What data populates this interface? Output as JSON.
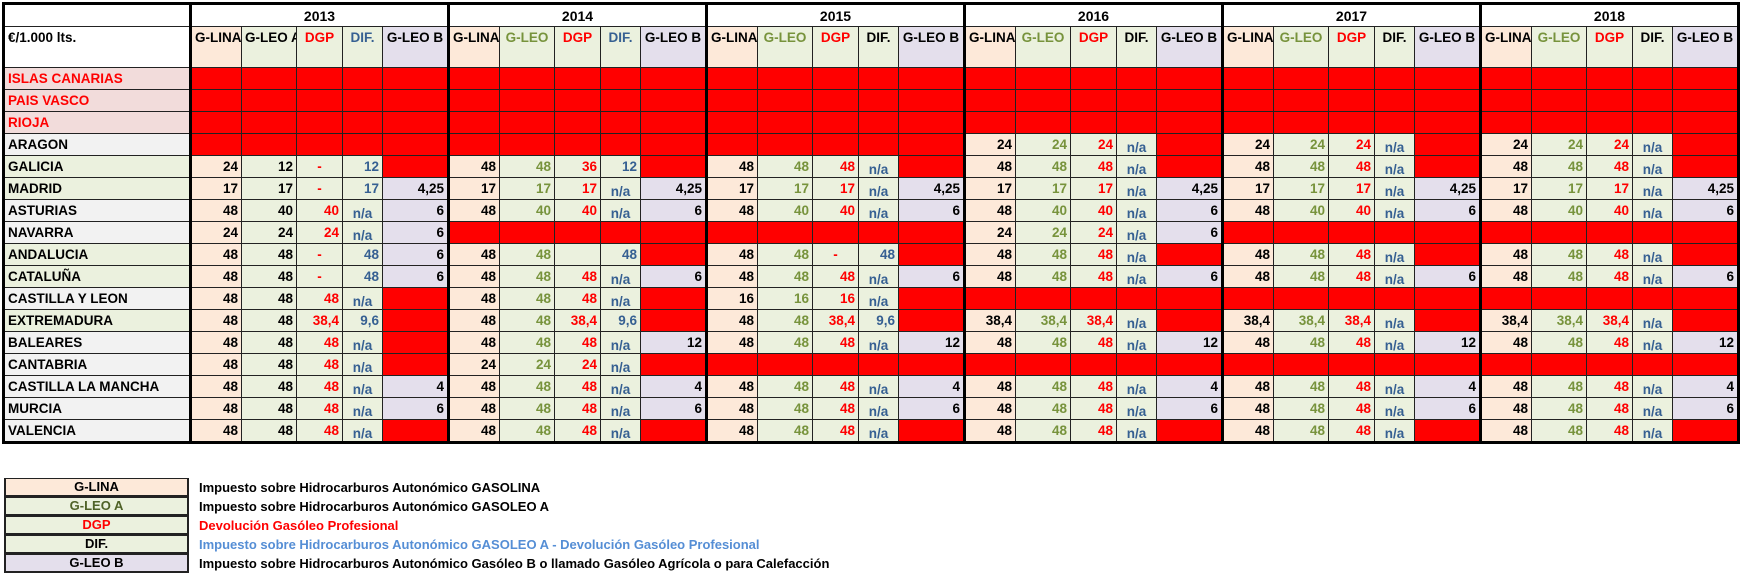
{
  "unit_label": "€/1.000 lts.",
  "colors": {
    "red_cell": "#ff0000",
    "gasolina_bg": "#fde9d9",
    "gasoleo_bg": "#ebf1de",
    "gasoleo_b_bg": "#e4dfec",
    "green_text": "#77933c",
    "blue_text": "#366092"
  },
  "years": [
    {
      "year": "2013",
      "columns": [
        "G-LINA",
        "G-LEO A",
        "DGP",
        "DIF.",
        "G-LEO B"
      ]
    },
    {
      "year": "2014",
      "columns": [
        "G-LINA",
        "G-LEO",
        "DGP",
        "DIF.",
        "G-LEO B"
      ]
    },
    {
      "year": "2015",
      "columns": [
        "G-LINA",
        "G-LEO",
        "DGP",
        "DIF.",
        "G-LEO B"
      ]
    },
    {
      "year": "2016",
      "columns": [
        "G-LINA",
        "G-LEO",
        "DGP",
        "DIF.",
        "G-LEO B"
      ]
    },
    {
      "year": "2017",
      "columns": [
        "G-LINA",
        "G-LEO",
        "DGP",
        "DIF.",
        "G-LEO B"
      ]
    },
    {
      "year": "2018",
      "columns": [
        "G-LINA",
        "G-LEO",
        "DGP",
        "DIF.",
        "G-LEO B"
      ]
    }
  ],
  "rows": [
    {
      "region": "ISLAS CANARIAS",
      "style": "excluded",
      "values": [
        null,
        null,
        null,
        null,
        null,
        null
      ]
    },
    {
      "region": "PAIS VASCO",
      "style": "excluded",
      "values": [
        null,
        null,
        null,
        null,
        null,
        null
      ]
    },
    {
      "region": "RIOJA",
      "style": "excluded",
      "values": [
        null,
        null,
        null,
        null,
        null,
        null
      ]
    },
    {
      "region": "ARAGON",
      "style": "gray",
      "values": [
        null,
        null,
        null,
        [
          "24",
          "24",
          "24",
          "n/a",
          null
        ],
        [
          "24",
          "24",
          "24",
          "n/a",
          null
        ],
        [
          "24",
          "24",
          "24",
          "n/a",
          null
        ]
      ]
    },
    {
      "region": "GALICIA",
      "style": "green",
      "values": [
        [
          "24",
          "12",
          "-",
          "12",
          null
        ],
        [
          "48",
          "48",
          "36",
          "12",
          null
        ],
        [
          "48",
          "48",
          "48",
          "n/a",
          null
        ],
        [
          "48",
          "48",
          "48",
          "n/a",
          null
        ],
        [
          "48",
          "48",
          "48",
          "n/a",
          null
        ],
        [
          "48",
          "48",
          "48",
          "n/a",
          null
        ]
      ]
    },
    {
      "region": "MADRID",
      "style": "green",
      "values": [
        [
          "17",
          "17",
          "-",
          "17",
          "4,25"
        ],
        [
          "17",
          "17",
          "17",
          "n/a",
          "4,25"
        ],
        [
          "17",
          "17",
          "17",
          "n/a",
          "4,25"
        ],
        [
          "17",
          "17",
          "17",
          "n/a",
          "4,25"
        ],
        [
          "17",
          "17",
          "17",
          "n/a",
          "4,25"
        ],
        [
          "17",
          "17",
          "17",
          "n/a",
          "4,25"
        ]
      ]
    },
    {
      "region": "ASTURIAS",
      "style": "gray",
      "values": [
        [
          "48",
          "40",
          "40",
          "n/a",
          "6"
        ],
        [
          "48",
          "40",
          "40",
          "n/a",
          "6"
        ],
        [
          "48",
          "40",
          "40",
          "n/a",
          "6"
        ],
        [
          "48",
          "40",
          "40",
          "n/a",
          "6"
        ],
        [
          "48",
          "40",
          "40",
          "n/a",
          "6"
        ],
        [
          "48",
          "40",
          "40",
          "n/a",
          "6"
        ]
      ]
    },
    {
      "region": "NAVARRA",
      "style": "gray",
      "values": [
        [
          "24",
          "24",
          "24",
          "n/a",
          "6"
        ],
        null,
        null,
        [
          "24",
          "24",
          "24",
          "n/a",
          "6"
        ],
        null,
        null
      ]
    },
    {
      "region": "ANDALUCIA",
      "style": "green",
      "values": [
        [
          "48",
          "48",
          "-",
          "48",
          "6"
        ],
        [
          "48",
          "48",
          "",
          "48",
          null
        ],
        [
          "48",
          "48",
          "-",
          "48",
          null
        ],
        [
          "48",
          "48",
          "48",
          "n/a",
          null
        ],
        [
          "48",
          "48",
          "48",
          "n/a",
          null
        ],
        [
          "48",
          "48",
          "48",
          "n/a",
          null
        ]
      ]
    },
    {
      "region": "CATALUÑA",
      "style": "green",
      "values": [
        [
          "48",
          "48",
          "-",
          "48",
          "6"
        ],
        [
          "48",
          "48",
          "48",
          "n/a",
          "6"
        ],
        [
          "48",
          "48",
          "48",
          "n/a",
          "6"
        ],
        [
          "48",
          "48",
          "48",
          "n/a",
          "6"
        ],
        [
          "48",
          "48",
          "48",
          "n/a",
          "6"
        ],
        [
          "48",
          "48",
          "48",
          "n/a",
          "6"
        ]
      ]
    },
    {
      "region": "CASTILLA Y LEON",
      "style": "gray",
      "values": [
        [
          "48",
          "48",
          "48",
          "n/a",
          null
        ],
        [
          "48",
          "48",
          "48",
          "n/a",
          null
        ],
        [
          "16",
          "16",
          "16",
          "n/a",
          null
        ],
        null,
        null,
        null
      ]
    },
    {
      "region": "EXTREMADURA",
      "style": "green",
      "values": [
        [
          "48",
          "48",
          "38,4",
          "9,6",
          null
        ],
        [
          "48",
          "48",
          "38,4",
          "9,6",
          null
        ],
        [
          "48",
          "48",
          "38,4",
          "9,6",
          null
        ],
        [
          "38,4",
          "38,4",
          "38,4",
          "n/a",
          null
        ],
        [
          "38,4",
          "38,4",
          "38,4",
          "n/a",
          null
        ],
        [
          "38,4",
          "38,4",
          "38,4",
          "n/a",
          null
        ]
      ]
    },
    {
      "region": "BALEARES",
      "style": "gray",
      "values": [
        [
          "48",
          "48",
          "48",
          "n/a",
          null
        ],
        [
          "48",
          "48",
          "48",
          "n/a",
          "12"
        ],
        [
          "48",
          "48",
          "48",
          "n/a",
          "12"
        ],
        [
          "48",
          "48",
          "48",
          "n/a",
          "12"
        ],
        [
          "48",
          "48",
          "48",
          "n/a",
          "12"
        ],
        [
          "48",
          "48",
          "48",
          "n/a",
          "12"
        ]
      ]
    },
    {
      "region": "CANTABRIA",
      "style": "gray",
      "values": [
        [
          "48",
          "48",
          "48",
          "n/a",
          null
        ],
        [
          "24",
          "24",
          "24",
          "n/a",
          null
        ],
        null,
        null,
        null,
        null
      ]
    },
    {
      "region": "CASTILLA LA MANCHA",
      "style": "gray",
      "values": [
        [
          "48",
          "48",
          "48",
          "n/a",
          "4"
        ],
        [
          "48",
          "48",
          "48",
          "n/a",
          "4"
        ],
        [
          "48",
          "48",
          "48",
          "n/a",
          "4"
        ],
        [
          "48",
          "48",
          "48",
          "n/a",
          "4"
        ],
        [
          "48",
          "48",
          "48",
          "n/a",
          "4"
        ],
        [
          "48",
          "48",
          "48",
          "n/a",
          "4"
        ]
      ]
    },
    {
      "region": "MURCIA",
      "style": "gray",
      "values": [
        [
          "48",
          "48",
          "48",
          "n/a",
          "6"
        ],
        [
          "48",
          "48",
          "48",
          "n/a",
          "6"
        ],
        [
          "48",
          "48",
          "48",
          "n/a",
          "6"
        ],
        [
          "48",
          "48",
          "48",
          "n/a",
          "6"
        ],
        [
          "48",
          "48",
          "48",
          "n/a",
          "6"
        ],
        [
          "48",
          "48",
          "48",
          "n/a",
          "6"
        ]
      ]
    },
    {
      "region": "VALENCIA",
      "style": "gray",
      "values": [
        [
          "48",
          "48",
          "48",
          "n/a",
          null
        ],
        [
          "48",
          "48",
          "48",
          "n/a",
          null
        ],
        [
          "48",
          "48",
          "48",
          "n/a",
          null
        ],
        [
          "48",
          "48",
          "48",
          "n/a",
          null
        ],
        [
          "48",
          "48",
          "48",
          "n/a",
          null
        ],
        [
          "48",
          "48",
          "48",
          "n/a",
          null
        ]
      ]
    }
  ],
  "legend": [
    {
      "code": "G-LINA",
      "description": "Impuesto sobre Hidrocarburos Autonómico GASOLINA"
    },
    {
      "code": "G-LEO A",
      "description": "Impuesto sobre Hidrocarburos Autonómico GASOLEO A"
    },
    {
      "code": "DGP",
      "description": "Devolución Gasóleo Profesional"
    },
    {
      "code": "DIF.",
      "description": "Impuesto sobre Hidrocarburos Autonómico GASOLEO A - Devolución Gasóleo Profesional"
    },
    {
      "code": "G-LEO B",
      "description": "Impuesto sobre Hidrocarburos Autonómico Gasóleo B o llamado Gasóleo Agrícola o para Calefacción"
    }
  ]
}
